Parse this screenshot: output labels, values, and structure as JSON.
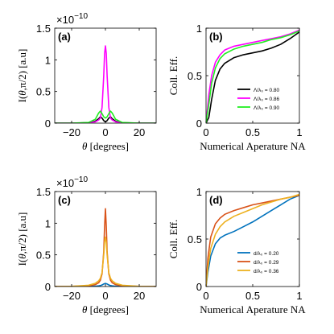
{
  "chart_data": [
    {
      "panel": "(a)",
      "type": "line",
      "xlabel": "θ [degrees]",
      "ylabel": "I(θ,π/2) [a.u]",
      "xlim": [
        -30,
        30
      ],
      "ylim": [
        0,
        1.5
      ],
      "xticks": [
        -20,
        0,
        20
      ],
      "yticks": [
        0,
        0.5,
        1,
        1.5
      ],
      "exponent_label": "×10",
      "exponent": "-10",
      "grid": false,
      "legend": "none",
      "series": [
        {
          "color": "#000000",
          "x": [
            -30,
            -20,
            -10,
            -6,
            -4,
            -3,
            -2,
            -1,
            0,
            1,
            2,
            3,
            4,
            6,
            10,
            20,
            30
          ],
          "y": [
            0,
            0,
            0.005,
            0.03,
            0.07,
            0.1,
            0.08,
            0.04,
            0.02,
            0.04,
            0.08,
            0.1,
            0.07,
            0.03,
            0.005,
            0,
            0
          ]
        },
        {
          "color": "#ff00ff",
          "x": [
            -30,
            -20,
            -10,
            -6,
            -4,
            -3,
            -2,
            -1,
            -0.5,
            0,
            0.5,
            1,
            2,
            3,
            4,
            6,
            10,
            20,
            30
          ],
          "y": [
            0,
            0,
            0.005,
            0.02,
            0.05,
            0.08,
            0.25,
            0.75,
            1.1,
            1.22,
            1.1,
            0.75,
            0.25,
            0.08,
            0.05,
            0.02,
            0.005,
            0,
            0
          ]
        },
        {
          "color": "#22ee22",
          "x": [
            -30,
            -20,
            -10,
            -6,
            -4,
            -3,
            -2,
            -1,
            0,
            1,
            2,
            3,
            4,
            6,
            10,
            20,
            30
          ],
          "y": [
            0,
            0,
            0.01,
            0.06,
            0.16,
            0.19,
            0.15,
            0.1,
            0.08,
            0.1,
            0.15,
            0.19,
            0.16,
            0.06,
            0.01,
            0,
            0
          ]
        }
      ]
    },
    {
      "panel": "(b)",
      "type": "line",
      "xlabel": "Numerical Aperature NA",
      "ylabel": "Coll. Eff.",
      "xlim": [
        0,
        1
      ],
      "ylim": [
        0,
        1
      ],
      "xticks": [
        0,
        0.5,
        1
      ],
      "yticks": [
        0,
        0.5,
        1
      ],
      "grid": false,
      "legend": "bottom-right",
      "series": [
        {
          "name": "Λ/λ₀ = 0.80",
          "color": "#000000",
          "x": [
            0,
            0.03,
            0.06,
            0.1,
            0.15,
            0.2,
            0.3,
            0.4,
            0.5,
            0.6,
            0.7,
            0.8,
            0.9,
            1.0
          ],
          "y": [
            0,
            0.06,
            0.25,
            0.45,
            0.57,
            0.63,
            0.69,
            0.72,
            0.74,
            0.76,
            0.79,
            0.83,
            0.89,
            0.96
          ]
        },
        {
          "name": "Λ/λ₀ = 0.86",
          "color": "#ff00ff",
          "x": [
            0,
            0.03,
            0.06,
            0.1,
            0.15,
            0.2,
            0.3,
            0.4,
            0.5,
            0.6,
            0.7,
            0.8,
            0.9,
            1.0
          ],
          "y": [
            0,
            0.3,
            0.5,
            0.64,
            0.72,
            0.77,
            0.81,
            0.83,
            0.85,
            0.87,
            0.89,
            0.91,
            0.94,
            0.98
          ]
        },
        {
          "name": "Λ/λ₀ = 0.90",
          "color": "#22ee22",
          "x": [
            0,
            0.03,
            0.06,
            0.1,
            0.15,
            0.2,
            0.3,
            0.4,
            0.5,
            0.6,
            0.7,
            0.8,
            0.9,
            1.0
          ],
          "y": [
            0,
            0.2,
            0.42,
            0.58,
            0.68,
            0.73,
            0.78,
            0.81,
            0.83,
            0.85,
            0.88,
            0.9,
            0.93,
            0.97
          ]
        }
      ]
    },
    {
      "panel": "(c)",
      "type": "line",
      "xlabel": "θ [degrees]",
      "ylabel": "I(θ,π/2) [a.u]",
      "xlim": [
        -30,
        30
      ],
      "ylim": [
        0,
        1.5
      ],
      "xticks": [
        -20,
        0,
        20
      ],
      "yticks": [
        0,
        0.5,
        1,
        1.5
      ],
      "exponent_label": "×10",
      "exponent": "-10",
      "grid": false,
      "legend": "none",
      "series": [
        {
          "color": "#0072bd",
          "x": [
            -30,
            -20,
            -10,
            -6,
            -4,
            -3,
            -2,
            -1,
            0,
            1,
            2,
            3,
            4,
            6,
            10,
            20,
            30
          ],
          "y": [
            0,
            0,
            0.002,
            0.005,
            0.01,
            0.015,
            0.025,
            0.04,
            0.05,
            0.04,
            0.025,
            0.015,
            0.01,
            0.005,
            0.002,
            0,
            0
          ]
        },
        {
          "color": "#d95319",
          "x": [
            -30,
            -20,
            -10,
            -6,
            -4,
            -3,
            -2,
            -1,
            -0.5,
            0,
            0.5,
            1,
            2,
            3,
            4,
            6,
            10,
            20,
            30
          ],
          "y": [
            0,
            0.002,
            0.01,
            0.03,
            0.06,
            0.1,
            0.2,
            0.55,
            0.95,
            1.23,
            0.95,
            0.55,
            0.2,
            0.1,
            0.06,
            0.03,
            0.01,
            0.002,
            0
          ]
        },
        {
          "color": "#edb120",
          "x": [
            -30,
            -20,
            -10,
            -6,
            -4,
            -3,
            -2,
            -1,
            -0.5,
            0,
            0.5,
            1,
            2,
            3,
            4,
            6,
            10,
            20,
            30
          ],
          "y": [
            0,
            0.003,
            0.02,
            0.05,
            0.09,
            0.13,
            0.22,
            0.5,
            0.7,
            0.78,
            0.7,
            0.5,
            0.22,
            0.13,
            0.09,
            0.05,
            0.02,
            0.003,
            0
          ]
        }
      ]
    },
    {
      "panel": "(d)",
      "type": "line",
      "xlabel": "Numerical Aperature NA",
      "ylabel": "Coll. Eff.",
      "xlim": [
        0,
        1
      ],
      "ylim": [
        0,
        1
      ],
      "xticks": [
        0,
        0.5,
        1
      ],
      "yticks": [
        0,
        0.5,
        1
      ],
      "grid": false,
      "legend": "bottom-right",
      "series": [
        {
          "name": "d/λ₀ = 0.20",
          "color": "#0072bd",
          "x": [
            0,
            0.02,
            0.05,
            0.1,
            0.15,
            0.2,
            0.3,
            0.4,
            0.5,
            0.6,
            0.7,
            0.8,
            0.9,
            1.0
          ],
          "y": [
            0,
            0.15,
            0.32,
            0.45,
            0.51,
            0.54,
            0.58,
            0.63,
            0.68,
            0.74,
            0.8,
            0.86,
            0.92,
            0.96
          ]
        },
        {
          "name": "d/λ₀ = 0.29",
          "color": "#d95319",
          "x": [
            0,
            0.02,
            0.05,
            0.1,
            0.15,
            0.2,
            0.3,
            0.4,
            0.5,
            0.6,
            0.7,
            0.8,
            0.9,
            1.0
          ],
          "y": [
            0,
            0.3,
            0.52,
            0.66,
            0.72,
            0.76,
            0.8,
            0.83,
            0.86,
            0.88,
            0.9,
            0.92,
            0.94,
            0.96
          ]
        },
        {
          "name": "d/λ₀ = 0.36",
          "color": "#edb120",
          "x": [
            0,
            0.02,
            0.05,
            0.1,
            0.15,
            0.2,
            0.3,
            0.4,
            0.5,
            0.6,
            0.7,
            0.8,
            0.9,
            1.0
          ],
          "y": [
            0,
            0.2,
            0.4,
            0.55,
            0.63,
            0.68,
            0.74,
            0.78,
            0.82,
            0.86,
            0.89,
            0.92,
            0.94,
            0.97
          ]
        }
      ]
    }
  ]
}
